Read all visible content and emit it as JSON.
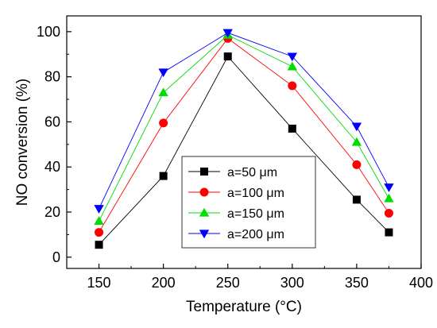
{
  "chart_data": {
    "type": "line",
    "title": "",
    "xlabel": "Temperature (°C)",
    "ylabel": "NO conversion (%)",
    "xlim": [
      125,
      400
    ],
    "ylim": [
      -5,
      107
    ],
    "xticks": [
      150,
      200,
      250,
      300,
      350,
      400
    ],
    "yticks": [
      0,
      20,
      40,
      60,
      80,
      100
    ],
    "x": [
      150,
      200,
      250,
      300,
      350,
      375
    ],
    "legend_position": "bottom-center",
    "grid": false,
    "series": [
      {
        "name": "a=50 μm",
        "color": "#000000",
        "marker": "square",
        "values": [
          5.5,
          36,
          89,
          57,
          25.5,
          11
        ]
      },
      {
        "name": "a=100 μm",
        "color": "#ff0000",
        "marker": "circle",
        "values": [
          11,
          59.5,
          97,
          76,
          41,
          19.5
        ]
      },
      {
        "name": "a=150 μm",
        "color": "#00dd00",
        "marker": "triangle-up",
        "values": [
          16,
          73,
          98.5,
          84.5,
          51,
          26
        ]
      },
      {
        "name": "a=200 μm",
        "color": "#0000ff",
        "marker": "triangle-down",
        "values": [
          21.5,
          82,
          99.5,
          89,
          58,
          31
        ]
      }
    ]
  }
}
